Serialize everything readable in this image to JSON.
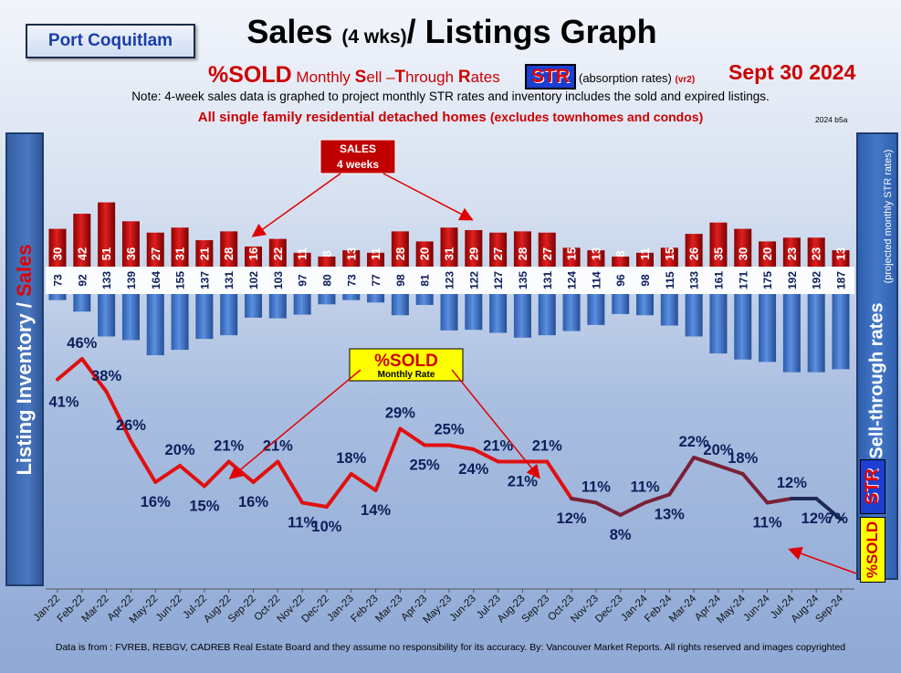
{
  "header": {
    "city": "Port Coquitlam",
    "title_main": "Sales ",
    "title_small": "(4 wks)",
    "title_rest": "/ Listings Graph",
    "sub_pct": "%SOLD",
    "sub_rest": " Monthly ",
    "sub_S": "S",
    "sub_ell": "ell –",
    "sub_T": "T",
    "sub_hrough": "hrough ",
    "sub_R": "R",
    "sub_ates": "ates",
    "str_badge": "STR",
    "str_note": "(absorption rates)",
    "str_version": "(vr2)",
    "date": "Sept  30  2024",
    "note": "Note: 4-week sales data is graphed to project monthly STR rates and inventory includes the sold and expired listings.",
    "note2_main": "All single family residential detached homes ",
    "note2_paren": "(excludes townhomes and condos)",
    "code": "2024 b5a"
  },
  "panels": {
    "left_inventory": "Listing Inventory /",
    "left_sales": "Sales",
    "right_main": "Sell-through rates",
    "right_sub": "(projected monthly STR rates)",
    "right_str": "STR",
    "right_sold": "%SOLD"
  },
  "callouts": {
    "sales_line1": "SALES",
    "sales_line2": "4  weeks",
    "sold_line1": "%SOLD",
    "sold_line2": "Monthly Rate"
  },
  "colors": {
    "sales_bar": "#c00000",
    "inventory_bar": "#3d72c7",
    "sold_line": "#e01010",
    "sold_line_late": "#1e2a55",
    "label_dark": "#0c1f5a"
  },
  "chart_data": {
    "type": "bar+line",
    "categories": [
      "Jan-22",
      "Feb-22",
      "Mar-22",
      "Apr-22",
      "May-22",
      "Jun-22",
      "Jul-22",
      "Aug-22",
      "Sep-22",
      "Oct-22",
      "Nov-22",
      "Dec-22",
      "Jan-23",
      "Feb-23",
      "Mar-23",
      "Apr-23",
      "May-23",
      "Jun-23",
      "Jul-23",
      "Aug-23",
      "Sep-23",
      "Oct-23",
      "Nov-23",
      "Dec-23",
      "Jan-24",
      "Feb-24",
      "Mar-24",
      "Apr-24",
      "May-24",
      "Jun-24",
      "Jul-24",
      "Aug-24",
      "Sep-24"
    ],
    "series": [
      {
        "name": "Sales (4 wks)",
        "type": "bar",
        "values": [
          30,
          42,
          51,
          36,
          27,
          31,
          21,
          28,
          16,
          22,
          11,
          8,
          13,
          11,
          28,
          20,
          31,
          29,
          27,
          28,
          27,
          15,
          13,
          8,
          11,
          15,
          26,
          35,
          30,
          20,
          23,
          23,
          13
        ]
      },
      {
        "name": "Listing Inventory",
        "type": "bar",
        "values": [
          73,
          92,
          133,
          139,
          164,
          155,
          137,
          131,
          102,
          103,
          97,
          80,
          73,
          77,
          98,
          81,
          123,
          122,
          127,
          135,
          131,
          124,
          114,
          96,
          98,
          115,
          133,
          161,
          171,
          175,
          192,
          192,
          187
        ]
      },
      {
        "name": "%SOLD Monthly Rate",
        "type": "line",
        "values": [
          41,
          46,
          38,
          26,
          16,
          20,
          15,
          21,
          16,
          21,
          11,
          10,
          18,
          14,
          29,
          25,
          25,
          24,
          21,
          21,
          21,
          12,
          11,
          8,
          11,
          13,
          22,
          20,
          18,
          11,
          12,
          12,
          7
        ]
      }
    ],
    "pct_labels": [
      "41%",
      "46%",
      "38%",
      "26%",
      "16%",
      "20%",
      "15%",
      "21%",
      "16%",
      "21%",
      "11%",
      "10%",
      "18%",
      "14%",
      "29%",
      "25%",
      "25%",
      "24%",
      "21%",
      "21%",
      "21%",
      "12%",
      "11%",
      "8%",
      "11%",
      "13%",
      "22%",
      "20%",
      "18%",
      "11%",
      "12%",
      "12%",
      "7%"
    ]
  },
  "footer": "Data is from : FVREB, REBGV, CADREB Real Estate Board and they assume no responsibility for its accuracy. By: Vancouver Market Reports. All rights reserved and  images copyrighted"
}
